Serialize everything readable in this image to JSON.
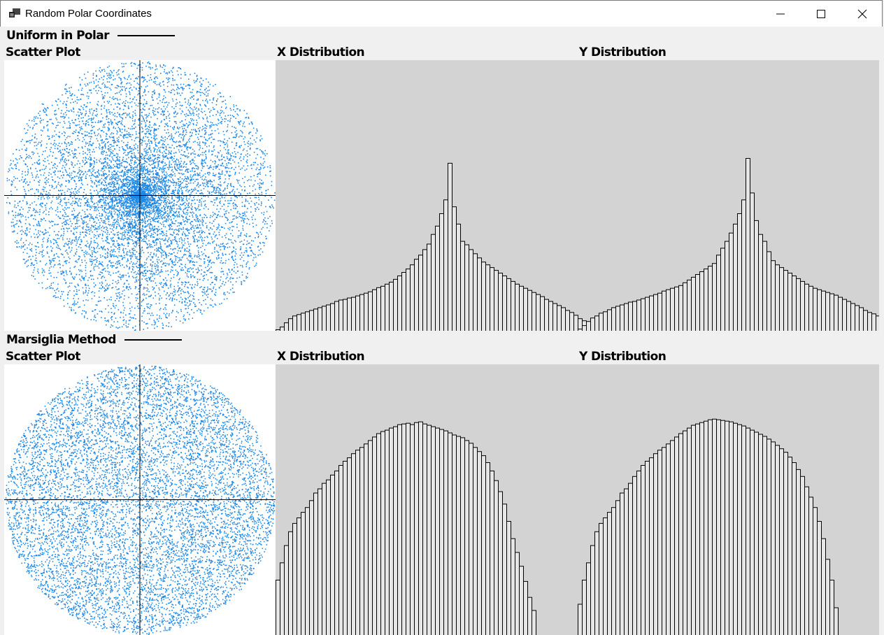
{
  "window": {
    "title": "Random Polar Coordinates",
    "icon": "app-window-icon",
    "controls": [
      "minimize-icon",
      "maximize-icon",
      "close-icon"
    ]
  },
  "colors": {
    "scatter_point": "#1e88e5",
    "histogram_bg": "#d3d3d3",
    "bar_fill": "#e6e6e6",
    "bar_stroke": "#000000",
    "axis": "#000000"
  },
  "panels": [
    {
      "title": "Uniform in Polar",
      "scatter_label": "Scatter Plot",
      "x_label": "X Distribution",
      "y_label": "Y Distribution"
    },
    {
      "title": "Marsiglia Method",
      "scatter_label": "Scatter Plot",
      "x_label": "X Distribution",
      "y_label": "Y Distribution"
    }
  ],
  "chart_data": [
    {
      "type": "scatter",
      "method": "uniform-in-polar",
      "points_distribution": "dense at center",
      "xlim": [
        -1,
        1
      ],
      "ylim": [
        -1,
        1
      ],
      "axes_through_origin": true
    },
    {
      "type": "bar",
      "series": [
        {
          "values": [
            2,
            6,
            12,
            18,
            22,
            24,
            26,
            28,
            30,
            32,
            34,
            36,
            38,
            40,
            43,
            45,
            46,
            48,
            49,
            51,
            53,
            55,
            57,
            60,
            63,
            65,
            68,
            71,
            75,
            80,
            85,
            90,
            96,
            104,
            110,
            118,
            126,
            140,
            152,
            170,
            190,
            243,
            180,
            155,
            130,
            125,
            118,
            112,
            106,
            100,
            96,
            92,
            88,
            84,
            80,
            76,
            72,
            68,
            65,
            62,
            59,
            56,
            53,
            50,
            46,
            43,
            40,
            37,
            34,
            30,
            27,
            23,
            18,
            15,
            12,
            7
          ]
        }
      ]
    },
    {
      "type": "bar",
      "series": [
        {
          "values": [
            3,
            8,
            14,
            19,
            22,
            26,
            28,
            31,
            34,
            36,
            38,
            40,
            42,
            43,
            45,
            47,
            49,
            51,
            53,
            55,
            58,
            60,
            62,
            64,
            66,
            70,
            74,
            78,
            82,
            86,
            90,
            94,
            98,
            110,
            120,
            130,
            142,
            155,
            170,
            190,
            250,
            200,
            160,
            140,
            130,
            115,
            102,
            96,
            92,
            88,
            84,
            80,
            76,
            72,
            68,
            65,
            62,
            60,
            58,
            56,
            54,
            52,
            49,
            46,
            43,
            40,
            37,
            34,
            30,
            27,
            25,
            22,
            18,
            12,
            6,
            3
          ]
        }
      ]
    },
    {
      "type": "scatter",
      "method": "marsiglia",
      "points_distribution": "uniform",
      "xlim": [
        -1,
        1
      ],
      "ylim": [
        -1,
        1
      ],
      "axes_through_origin": true
    },
    {
      "type": "bar",
      "series": [
        {
          "values": [
            80,
            105,
            130,
            150,
            162,
            170,
            178,
            185,
            195,
            206,
            212,
            220,
            225,
            232,
            238,
            246,
            252,
            257,
            263,
            268,
            272,
            277,
            282,
            287,
            292,
            295,
            297,
            300,
            302,
            305,
            306,
            307,
            305,
            308,
            309,
            306,
            304,
            302,
            300,
            298,
            296,
            293,
            290,
            288,
            286,
            282,
            278,
            272,
            266,
            260,
            250,
            238,
            224,
            208,
            190,
            165,
            140,
            120,
            100,
            78,
            55,
            36
          ]
        }
      ]
    },
    {
      "type": "bar",
      "series": [
        {
          "values": [
            45,
            80,
            105,
            130,
            150,
            162,
            170,
            178,
            185,
            195,
            206,
            212,
            220,
            230,
            238,
            246,
            252,
            257,
            263,
            268,
            272,
            277,
            282,
            287,
            292,
            296,
            300,
            304,
            306,
            308,
            310,
            312,
            313,
            312,
            311,
            310,
            309,
            307,
            305,
            303,
            300,
            297,
            294,
            291,
            288,
            284,
            280,
            275,
            270,
            265,
            258,
            250,
            240,
            230,
            215,
            200,
            185,
            165,
            140,
            110,
            80,
            40
          ]
        }
      ]
    }
  ]
}
